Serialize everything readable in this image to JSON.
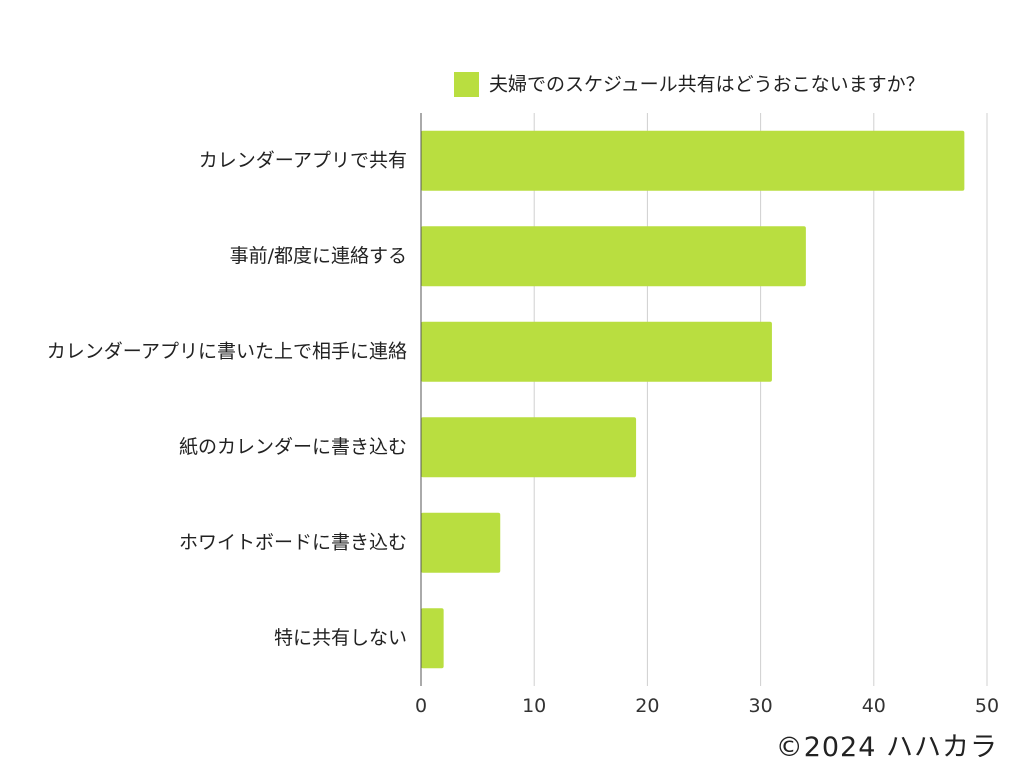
{
  "chart_data": {
    "type": "bar",
    "orientation": "horizontal",
    "categories": [
      "カレンダーアプリで共有",
      "事前/都度に連絡する",
      "カレンダーアプリに書いた上で相手に連絡",
      "紙のカレンダーに書き込む",
      "ホワイトボードに書き込む",
      "特に共有しない"
    ],
    "series": [
      {
        "name": "夫婦でのスケジュール共有はどうおこないますか？",
        "values": [
          48,
          34,
          31,
          19,
          7,
          2
        ]
      }
    ],
    "xlim": [
      0,
      50
    ],
    "x_ticks": [
      0,
      10,
      20,
      30,
      40,
      50
    ],
    "grid": true,
    "legend_position": "top",
    "colors": {
      "bar": "#b9de40",
      "grid": "#d0d0d0",
      "axis": "#555555"
    }
  },
  "copyright": "©2024 ハハカラ"
}
